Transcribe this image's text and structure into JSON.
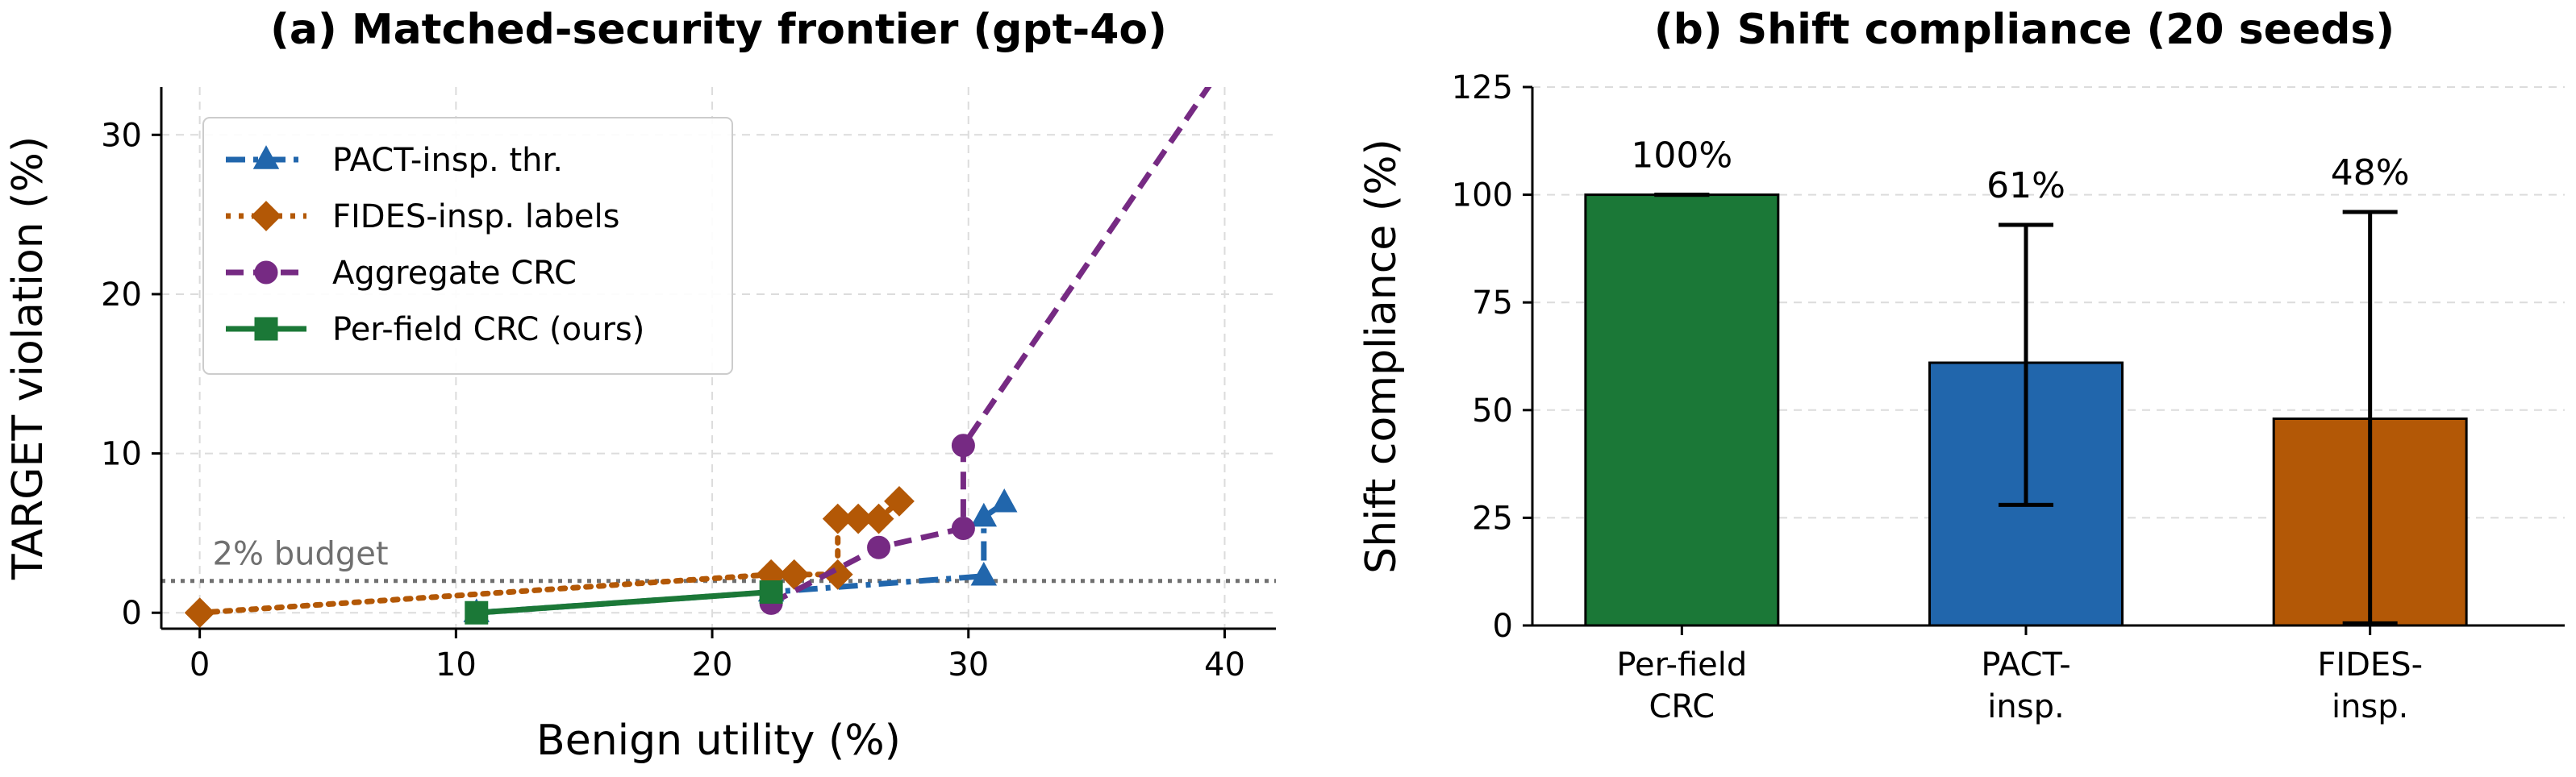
{
  "chart_data": [
    {
      "type": "line",
      "title": "(a) Matched-security frontier (gpt-4o)",
      "xlabel": "Benign utility (%)",
      "ylabel": "TARGET violation (%)",
      "xlim": [
        -1.5,
        42
      ],
      "ylim": [
        -1,
        33
      ],
      "xticks": [
        0,
        10,
        20,
        30,
        40
      ],
      "yticks": [
        0,
        10,
        20,
        30
      ],
      "grid": true,
      "legend_position": "top-left",
      "budget": {
        "value": 2,
        "label": "2% budget"
      },
      "series": [
        {
          "name": "PACT-insp. thr.",
          "color": "#2166ac",
          "marker": "triangle",
          "dash": "dashdot",
          "points": [
            [
              10.8,
              0
            ],
            [
              22.3,
              1.3
            ],
            [
              30.6,
              2.3
            ],
            [
              30.6,
              6.0
            ],
            [
              31.4,
              6.9
            ]
          ]
        },
        {
          "name": "FIDES-insp. labels",
          "color": "#b35806",
          "marker": "diamond",
          "dash": "dotted",
          "points": [
            [
              0,
              0
            ],
            [
              22.3,
              2.4
            ],
            [
              23.2,
              2.4
            ],
            [
              24.9,
              2.4
            ],
            [
              24.9,
              5.9
            ],
            [
              25.7,
              5.9
            ],
            [
              26.5,
              5.9
            ],
            [
              27.3,
              7.0
            ]
          ]
        },
        {
          "name": "Aggregate CRC",
          "color": "#762a83",
          "marker": "circle",
          "dash": "dashed",
          "points": [
            [
              22.3,
              0.6
            ],
            [
              26.5,
              4.1
            ],
            [
              29.8,
              5.3
            ],
            [
              29.8,
              10.5
            ],
            [
              40.0,
              34.5
            ]
          ]
        },
        {
          "name": "Per-field CRC (ours)",
          "color": "#1b7837",
          "marker": "square",
          "dash": "solid",
          "points": [
            [
              10.8,
              0
            ],
            [
              22.3,
              1.3
            ]
          ]
        }
      ]
    },
    {
      "type": "bar",
      "title": "(b) Shift compliance (20 seeds)",
      "xlabel": "",
      "ylabel": "Shift compliance (%)",
      "ylim": [
        0,
        125
      ],
      "yticks": [
        0,
        25,
        50,
        75,
        100,
        125
      ],
      "grid": true,
      "categories": [
        "Per-field CRC",
        "PACT-insp.",
        "FIDES-insp."
      ],
      "category_lines": [
        [
          "Per-field",
          "CRC"
        ],
        [
          "PACT-",
          "insp."
        ],
        [
          "FIDES-",
          "insp."
        ]
      ],
      "values": [
        100,
        61,
        48
      ],
      "errors": [
        [
          100,
          100
        ],
        [
          28,
          93
        ],
        [
          0.5,
          96
        ]
      ],
      "value_labels": [
        "100%",
        "61%",
        "48%"
      ],
      "colors": [
        "#1b7837",
        "#2166ac",
        "#b35806"
      ]
    }
  ]
}
